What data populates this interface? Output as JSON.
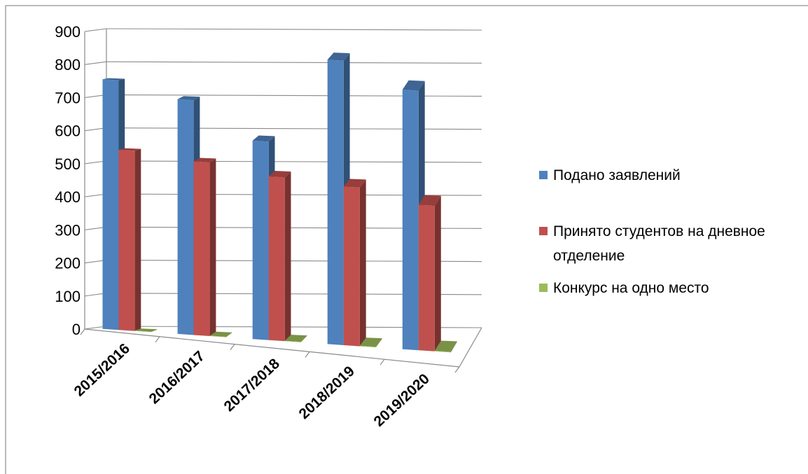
{
  "chart_data": {
    "type": "bar",
    "style": "3d-clustered-column",
    "categories": [
      "2015/2016",
      "2016/2017",
      "2017/2018",
      "2018/2019",
      "2019/2020"
    ],
    "series": [
      {
        "name": "Подано заявлений",
        "color": "#4f81bd",
        "values": [
          755,
          710,
          600,
          860,
          785
        ]
      },
      {
        "name": "Принято студентов на дневное отделение",
        "color": "#c0504d",
        "values": [
          545,
          525,
          495,
          480,
          440
        ]
      },
      {
        "name": "Конкурс на одно место",
        "color": "#9bbb59",
        "values": [
          1.4,
          1.35,
          1.2,
          1.8,
          1.8
        ]
      }
    ],
    "yticks": [
      "0",
      "100",
      "200",
      "300",
      "400",
      "500",
      "600",
      "700",
      "800",
      "900"
    ],
    "ylim": [
      0,
      900
    ],
    "grid": true,
    "legend": "right",
    "legend_lines": [
      [
        "Подано заявлений"
      ],
      [
        "Принято студентов на дневное",
        "отделение"
      ],
      [
        "Конкурс на одно место"
      ]
    ]
  }
}
